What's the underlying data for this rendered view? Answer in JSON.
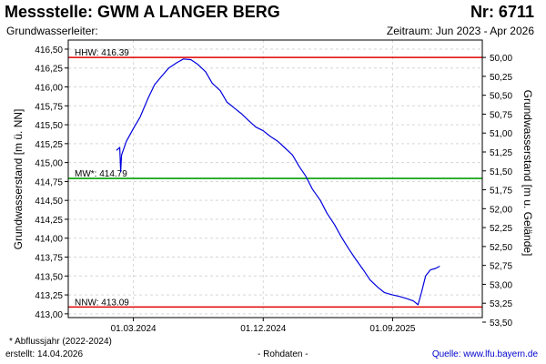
{
  "header": {
    "title": "Messstelle: GWM A LANGER BERG",
    "nr": "Nr: 6711",
    "aquifer_label": "Grundwasserleiter:",
    "period": "Zeitraum: Jun 2023 - Apr 2026"
  },
  "footer": {
    "note": "* Abflussjahr (2022-2024)",
    "created": "erstellt:  14.04.2026",
    "raw": "- Rohdaten -",
    "source": "Quelle:  www.lfu.bayern.de"
  },
  "chart_data": {
    "type": "line",
    "ylabel": "Grundwasserstand [m ü. NN]",
    "ylabel_right": "Grundwasserstand [m u. Gelände]",
    "ylim": [
      412.95,
      416.62
    ],
    "yticks": [
      "416,50",
      "416,25",
      "416,00",
      "415,75",
      "415,50",
      "415,25",
      "415,00",
      "414,75",
      "414,50",
      "414,25",
      "414,00",
      "413,75",
      "413,50",
      "413,25",
      "413,00"
    ],
    "ytick_values": [
      416.5,
      416.25,
      416.0,
      415.75,
      415.5,
      415.25,
      415.0,
      414.75,
      414.5,
      414.25,
      414.0,
      413.75,
      413.5,
      413.25,
      413.0
    ],
    "yticks_right": [
      "50,00",
      "50,25",
      "50,50",
      "50,75",
      "51,00",
      "51,25",
      "51,50",
      "51,75",
      "52,00",
      "52,25",
      "52,50",
      "52,75",
      "53,00",
      "53,25",
      "53,50"
    ],
    "ytick_right_values": [
      416.39,
      416.14,
      415.89,
      415.64,
      415.39,
      415.14,
      414.89,
      414.64,
      414.39,
      414.14,
      413.89,
      413.64,
      413.39,
      413.14,
      412.89
    ],
    "xlim": [
      "2023-10-15",
      "2026-03-10"
    ],
    "xticks": [
      "01.03.2024",
      "01.12.2024",
      "01.09.2025"
    ],
    "xtick_values": [
      "2024-03-01",
      "2024-12-01",
      "2025-09-01"
    ],
    "grid": true,
    "reference_lines": [
      {
        "label": "HHW: 416.39",
        "value": 416.39,
        "color": "#e00000"
      },
      {
        "label": "MW*: 414.79",
        "value": 414.79,
        "color": "#00a000"
      },
      {
        "label": "NNW: 413.09",
        "value": 413.09,
        "color": "#e00000"
      }
    ],
    "series": [
      {
        "color": "#0000dd",
        "points": [
          [
            "2024-01-25",
            415.16
          ],
          [
            "2024-02-01",
            415.2
          ],
          [
            "2024-02-03",
            414.88
          ],
          [
            "2024-02-05",
            415.1
          ],
          [
            "2024-02-15",
            415.28
          ],
          [
            "2024-03-01",
            415.45
          ],
          [
            "2024-03-15",
            415.6
          ],
          [
            "2024-04-01",
            415.85
          ],
          [
            "2024-04-15",
            416.03
          ],
          [
            "2024-05-01",
            416.15
          ],
          [
            "2024-05-15",
            416.25
          ],
          [
            "2024-06-01",
            416.32
          ],
          [
            "2024-06-15",
            416.37
          ],
          [
            "2024-07-01",
            416.36
          ],
          [
            "2024-07-15",
            416.3
          ],
          [
            "2024-08-01",
            416.2
          ],
          [
            "2024-08-15",
            416.05
          ],
          [
            "2024-09-01",
            415.95
          ],
          [
            "2024-09-15",
            415.8
          ],
          [
            "2024-10-01",
            415.72
          ],
          [
            "2024-10-15",
            415.65
          ],
          [
            "2024-11-01",
            415.55
          ],
          [
            "2024-11-15",
            415.47
          ],
          [
            "2024-12-01",
            415.42
          ],
          [
            "2024-12-15",
            415.35
          ],
          [
            "2025-01-01",
            415.28
          ],
          [
            "2025-01-15",
            415.2
          ],
          [
            "2025-02-01",
            415.1
          ],
          [
            "2025-02-15",
            414.95
          ],
          [
            "2025-03-01",
            414.82
          ],
          [
            "2025-03-15",
            414.65
          ],
          [
            "2025-04-01",
            414.5
          ],
          [
            "2025-04-15",
            414.33
          ],
          [
            "2025-05-01",
            414.18
          ],
          [
            "2025-05-15",
            414.02
          ],
          [
            "2025-06-01",
            413.85
          ],
          [
            "2025-06-15",
            413.72
          ],
          [
            "2025-07-01",
            413.58
          ],
          [
            "2025-07-15",
            413.45
          ],
          [
            "2025-08-01",
            413.35
          ],
          [
            "2025-08-15",
            413.28
          ],
          [
            "2025-09-01",
            413.25
          ],
          [
            "2025-09-15",
            413.23
          ],
          [
            "2025-10-01",
            413.2
          ],
          [
            "2025-10-15",
            413.17
          ],
          [
            "2025-10-25",
            413.12
          ],
          [
            "2025-11-01",
            413.28
          ],
          [
            "2025-11-10",
            413.5
          ],
          [
            "2025-11-20",
            413.58
          ],
          [
            "2025-12-01",
            413.6
          ],
          [
            "2025-12-10",
            413.63
          ]
        ]
      }
    ]
  }
}
